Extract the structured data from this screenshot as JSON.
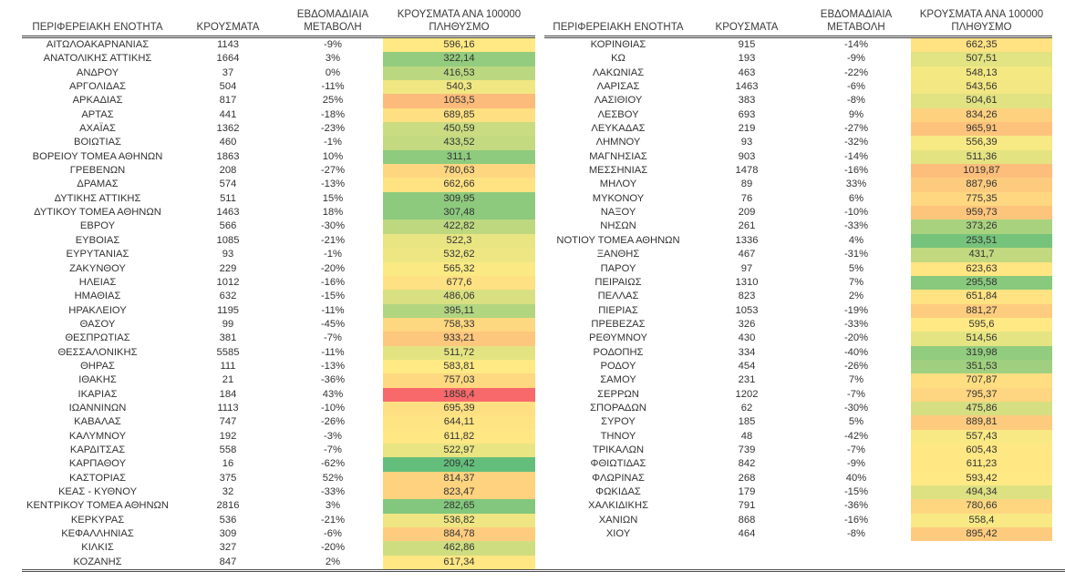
{
  "headers": {
    "region": "ΠΕΡΙΦΕΡΕΙΑΚΗ ΕΝΟΤΗΤΑ",
    "cases": "ΚΡΟΥΣΜΑΤΑ",
    "weekly_change_line1": "ΕΒΔΟΜΑΔΙΑΙΑ",
    "weekly_change_line2": "ΜΕΤΑΒΟΛΗ",
    "per_100k_line1": "ΚΡΟΥΣΜΑΤΑ ΑΝΑ 100000",
    "per_100k_line2": "ΠΛΗΘΥΣΜΟ"
  },
  "chart_data": {
    "type": "table",
    "columns": [
      "ΠΕΡΙΦΕΡΕΙΑΚΗ ΕΝΟΤΗΤΑ",
      "ΚΡΟΥΣΜΑΤΑ",
      "ΕΒΔΟΜΑΔΙΑΙΑ ΜΕΤΑΒΟΛΗ",
      "ΚΡΟΥΣΜΑΤΑ ΑΝΑ 100000 ΠΛΗΘΥΣΜΟ"
    ],
    "heat_scale": {
      "applies_to_column": "ΚΡΟΥΣΜΑΤΑ ΑΝΑ 100000 ΠΛΗΘΥΣΜΟ",
      "min_color": "#63BE7B",
      "mid_color": "#FFEB84",
      "max_color": "#F8696B",
      "midpoint": "median"
    },
    "tables": [
      {
        "name": "left",
        "rows": [
          [
            "ΑΙΤΩΛΟΑΚΑΡΝΑΝΙΑΣ",
            "1143",
            "-9%",
            "596,16"
          ],
          [
            "ΑΝΑΤΟΛΙΚΗΣ ΑΤΤΙΚΗΣ",
            "1664",
            "3%",
            "322,14"
          ],
          [
            "ΑΝΔΡΟΥ",
            "37",
            "0%",
            "416,53"
          ],
          [
            "ΑΡΓΟΛΙΔΑΣ",
            "504",
            "-11%",
            "540,3"
          ],
          [
            "ΑΡΚΑΔΙΑΣ",
            "817",
            "25%",
            "1053,5"
          ],
          [
            "ΑΡΤΑΣ",
            "441",
            "-18%",
            "689,85"
          ],
          [
            "ΑΧΑΪΑΣ",
            "1362",
            "-23%",
            "450,59"
          ],
          [
            "ΒΟΙΩΤΙΑΣ",
            "460",
            "-1%",
            "433,52"
          ],
          [
            "ΒΟΡΕΙΟΥ ΤΟΜΕΑ ΑΘΗΝΩΝ",
            "1863",
            "10%",
            "311,1"
          ],
          [
            "ΓΡΕΒΕΝΩΝ",
            "208",
            "-27%",
            "780,63"
          ],
          [
            "ΔΡΑΜΑΣ",
            "574",
            "-13%",
            "662,66"
          ],
          [
            "ΔΥΤΙΚΗΣ ΑΤΤΙΚΗΣ",
            "511",
            "15%",
            "309,95"
          ],
          [
            "ΔΥΤΙΚΟΥ ΤΟΜΕΑ ΑΘΗΝΩΝ",
            "1463",
            "18%",
            "307,48"
          ],
          [
            "ΕΒΡΟΥ",
            "566",
            "-30%",
            "422,82"
          ],
          [
            "ΕΥΒΟΙΑΣ",
            "1085",
            "-21%",
            "522,3"
          ],
          [
            "ΕΥΡΥΤΑΝΙΑΣ",
            "93",
            "-1%",
            "532,62"
          ],
          [
            "ΖΑΚΥΝΘΟΥ",
            "229",
            "-20%",
            "565,32"
          ],
          [
            "ΗΛΕΙΑΣ",
            "1012",
            "-16%",
            "677,6"
          ],
          [
            "ΗΜΑΘΙΑΣ",
            "632",
            "-15%",
            "486,06"
          ],
          [
            "ΗΡΑΚΛΕΙΟΥ",
            "1195",
            "-11%",
            "395,11"
          ],
          [
            "ΘΑΣΟΥ",
            "99",
            "-45%",
            "758,33"
          ],
          [
            "ΘΕΣΠΡΩΤΙΑΣ",
            "381",
            "-7%",
            "933,21"
          ],
          [
            "ΘΕΣΣΑΛΟΝΙΚΗΣ",
            "5585",
            "-11%",
            "511,72"
          ],
          [
            "ΘΗΡΑΣ",
            "111",
            "-13%",
            "583,81"
          ],
          [
            "ΙΘΑΚΗΣ",
            "21",
            "-36%",
            "757,03"
          ],
          [
            "ΙΚΑΡΙΑΣ",
            "184",
            "43%",
            "1858,4"
          ],
          [
            "ΙΩΑΝΝΙΝΩΝ",
            "1113",
            "-10%",
            "695,39"
          ],
          [
            "ΚΑΒΑΛΑΣ",
            "747",
            "-26%",
            "644,11"
          ],
          [
            "ΚΑΛΥΜΝΟΥ",
            "192",
            "-3%",
            "611,82"
          ],
          [
            "ΚΑΡΔΙΤΣΑΣ",
            "558",
            "-7%",
            "522,97"
          ],
          [
            "ΚΑΡΠΑΘΟΥ",
            "16",
            "-62%",
            "209,42"
          ],
          [
            "ΚΑΣΤΟΡΙΑΣ",
            "375",
            "52%",
            "814,37"
          ],
          [
            "ΚΕΑΣ - ΚΥΘΝΟΥ",
            "32",
            "-33%",
            "823,47"
          ],
          [
            "ΚΕΝΤΡΙΚΟΥ ΤΟΜΕΑ ΑΘΗΝΩΝ",
            "2816",
            "3%",
            "282,65"
          ],
          [
            "ΚΕΡΚΥΡΑΣ",
            "536",
            "-21%",
            "536,82"
          ],
          [
            "ΚΕΦΑΛΛΗΝΙΑΣ",
            "309",
            "-6%",
            "884,78"
          ],
          [
            "ΚΙΛΚΙΣ",
            "327",
            "-20%",
            "462,86"
          ],
          [
            "ΚΟΖΑΝΗΣ",
            "847",
            "2%",
            "617,34"
          ]
        ]
      },
      {
        "name": "right",
        "rows": [
          [
            "ΚΟΡΙΝΘΙΑΣ",
            "915",
            "-14%",
            "662,35"
          ],
          [
            "ΚΩ",
            "193",
            "-9%",
            "507,51"
          ],
          [
            "ΛΑΚΩΝΙΑΣ",
            "463",
            "-22%",
            "548,13"
          ],
          [
            "ΛΑΡΙΣΑΣ",
            "1463",
            "-6%",
            "543,56"
          ],
          [
            "ΛΑΣΙΘΙΟΥ",
            "383",
            "-8%",
            "504,61"
          ],
          [
            "ΛΕΣΒΟΥ",
            "693",
            "9%",
            "834,26"
          ],
          [
            "ΛΕΥΚΑΔΑΣ",
            "219",
            "-27%",
            "965,91"
          ],
          [
            "ΛΗΜΝΟΥ",
            "93",
            "-32%",
            "556,39"
          ],
          [
            "ΜΑΓΝΗΣΙΑΣ",
            "903",
            "-14%",
            "511,36"
          ],
          [
            "ΜΕΣΣΗΝΙΑΣ",
            "1478",
            "-16%",
            "1019,87"
          ],
          [
            "ΜΗΛΟΥ",
            "89",
            "33%",
            "887,96"
          ],
          [
            "ΜΥΚΟΝΟΥ",
            "76",
            "6%",
            "775,35"
          ],
          [
            "ΝΑΞΟΥ",
            "209",
            "-10%",
            "959,73"
          ],
          [
            "ΝΗΣΩΝ",
            "261",
            "-33%",
            "373,26"
          ],
          [
            "ΝΟΤΙΟΥ ΤΟΜΕΑ ΑΘΗΝΩΝ",
            "1336",
            "4%",
            "253,51"
          ],
          [
            "ΞΑΝΘΗΣ",
            "467",
            "-31%",
            "431,7"
          ],
          [
            "ΠΑΡΟΥ",
            "97",
            "5%",
            "623,63"
          ],
          [
            "ΠΕΙΡΑΙΩΣ",
            "1310",
            "7%",
            "295,58"
          ],
          [
            "ΠΕΛΛΑΣ",
            "823",
            "2%",
            "651,84"
          ],
          [
            "ΠΙΕΡΙΑΣ",
            "1053",
            "-19%",
            "881,27"
          ],
          [
            "ΠΡΕΒΕΖΑΣ",
            "326",
            "-33%",
            "595,6"
          ],
          [
            "ΡΕΘΥΜΝΟΥ",
            "430",
            "-20%",
            "514,56"
          ],
          [
            "ΡΟΔΟΠΗΣ",
            "334",
            "-40%",
            "319,98"
          ],
          [
            "ΡΟΔΟΥ",
            "454",
            "-26%",
            "351,53"
          ],
          [
            "ΣΑΜΟΥ",
            "231",
            "7%",
            "707,87"
          ],
          [
            "ΣΕΡΡΩΝ",
            "1202",
            "-7%",
            "795,37"
          ],
          [
            "ΣΠΟΡΑΔΩΝ",
            "62",
            "-30%",
            "475,86"
          ],
          [
            "ΣΥΡΟΥ",
            "185",
            "5%",
            "889,81"
          ],
          [
            "ΤΗΝΟΥ",
            "48",
            "-42%",
            "557,43"
          ],
          [
            "ΤΡΙΚΑΛΩΝ",
            "739",
            "-7%",
            "605,43"
          ],
          [
            "ΦΘΙΩΤΙΔΑΣ",
            "842",
            "-9%",
            "611,23"
          ],
          [
            "ΦΛΩΡΙΝΑΣ",
            "268",
            "40%",
            "593,42"
          ],
          [
            "ΦΩΚΙΔΑΣ",
            "179",
            "-15%",
            "494,34"
          ],
          [
            "ΧΑΛΚΙΔΙΚΗΣ",
            "791",
            "-36%",
            "780,66"
          ],
          [
            "ΧΑΝΙΩΝ",
            "868",
            "-16%",
            "558,4"
          ],
          [
            "ΧΙΟΥ",
            "464",
            "-8%",
            "895,42"
          ]
        ]
      }
    ]
  }
}
